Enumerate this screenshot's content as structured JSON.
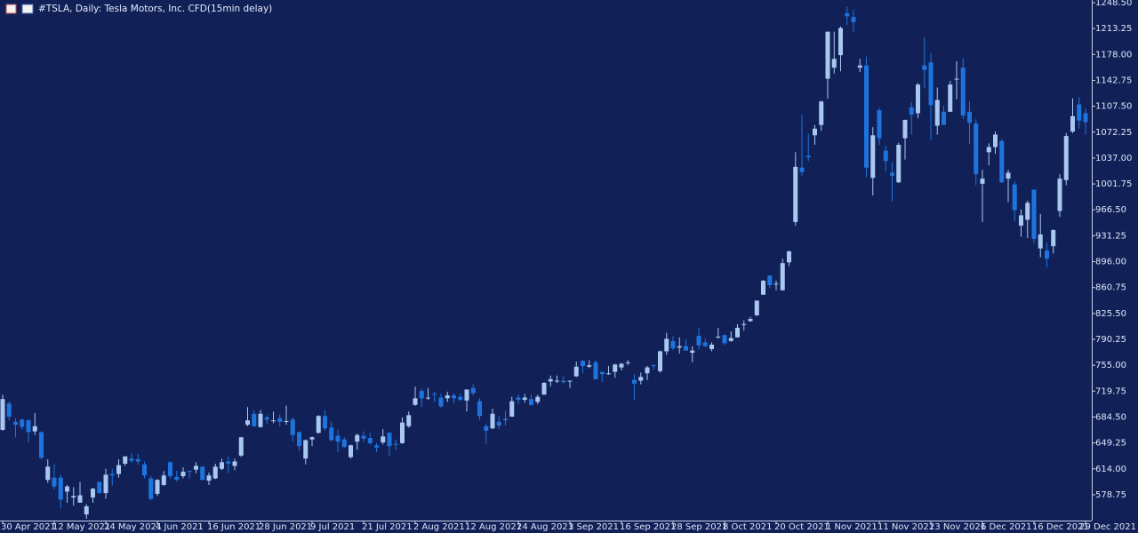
{
  "chart_data": {
    "type": "candlestick",
    "title": "#TSLA, Daily:  Tesla Motors, Inc.  CFD(15min delay)",
    "up_color": "#a9c8f0",
    "down_color": "#1e74de",
    "background": "#112158",
    "categories": [
      "30 Apr 2021",
      null,
      null,
      null,
      null,
      null,
      null,
      null,
      "12 May 2021",
      null,
      null,
      null,
      null,
      null,
      null,
      null,
      "24 May 2021",
      null,
      null,
      null,
      null,
      null,
      null,
      null,
      "4 Jun 2021",
      null,
      null,
      null,
      null,
      null,
      null,
      null,
      "16 Jun 2021",
      null,
      null,
      null,
      null,
      null,
      null,
      null,
      "28 Jun 2021",
      null,
      null,
      null,
      null,
      null,
      null,
      null,
      "9 Jul 2021",
      null,
      null,
      null,
      null,
      null,
      null,
      null,
      "21 Jul 2021",
      null,
      null,
      null,
      null,
      null,
      null,
      null,
      "2 Aug 2021",
      null,
      null,
      null,
      null,
      null,
      null,
      null,
      "12 Aug 2021",
      null,
      null,
      null,
      null,
      null,
      null,
      null,
      "24 Aug 2021",
      null,
      null,
      null,
      null,
      null,
      null,
      null,
      "3 Sep 2021",
      null,
      null,
      null,
      null,
      null,
      null,
      null,
      "16 Sep 2021",
      null,
      null,
      null,
      null,
      null,
      null,
      null,
      "28 Sep 2021",
      null,
      null,
      null,
      null,
      null,
      null,
      null,
      "8 Oct 2021",
      null,
      null,
      null,
      null,
      null,
      null,
      null,
      "20 Oct 2021",
      null,
      null,
      null,
      null,
      null,
      null,
      null,
      "1 Nov 2021",
      null,
      null,
      null,
      null,
      null,
      null,
      null,
      "11 Nov 2021",
      null,
      null,
      null,
      null,
      null,
      null,
      null,
      "23 Nov 2021",
      null,
      null,
      null,
      null,
      null,
      null,
      null,
      "6 Dec 2021",
      null,
      null,
      null,
      null,
      null,
      null,
      null,
      "16 Dec 2021",
      null,
      null,
      null,
      null,
      null,
      null,
      null,
      "29 Dec 2021"
    ],
    "open": [
      667,
      703,
      678,
      681,
      680,
      665,
      664,
      599,
      602,
      602,
      583,
      575,
      568,
      552,
      575,
      596,
      581,
      607,
      607,
      621,
      628,
      627,
      620,
      601,
      580,
      592,
      623,
      603,
      604,
      611,
      613,
      617,
      598,
      601,
      614,
      624,
      618,
      632,
      674,
      689,
      671,
      684,
      679,
      683,
      678,
      681,
      664,
      628,
      654,
      663,
      686,
      670,
      659,
      654,
      630,
      651,
      659,
      656,
      646,
      650,
      663,
      648,
      649,
      672,
      701,
      720,
      711,
      716,
      711,
      710,
      714,
      712,
      707,
      724,
      706,
      672,
      669,
      678,
      682,
      685,
      711,
      708,
      709,
      705,
      715,
      733,
      734,
      734,
      733,
      740,
      761,
      753,
      759,
      746,
      743,
      746,
      752,
      758,
      735,
      734,
      744,
      755,
      747,
      774,
      788,
      779,
      781,
      772,
      795,
      786,
      777,
      794,
      796,
      788,
      793,
      811,
      815,
      823,
      851,
      877,
      865,
      857,
      895,
      950,
      1024,
      1040,
      1068,
      1082,
      1145,
      1160,
      1177,
      1234,
      1229,
      1160,
      1163,
      1010,
      1102,
      1047,
      1017,
      1004,
      1064,
      1106,
      1098,
      1163,
      1167,
      1081,
      1100,
      1100,
      1145,
      1160,
      1100,
      1084,
      1002,
      1045,
      1052,
      1060,
      1009,
      1001,
      945,
      953,
      994,
      914,
      911,
      917,
      965,
      1007,
      1073,
      1110,
      1098
    ],
    "high": [
      715,
      706,
      683,
      682,
      681,
      690,
      665,
      627,
      620,
      606,
      592,
      589,
      596,
      566,
      588,
      597,
      614,
      614,
      627,
      631,
      635,
      634,
      624,
      604,
      600,
      611,
      624,
      611,
      616,
      612,
      623,
      617,
      609,
      621,
      628,
      631,
      628,
      657,
      698,
      694,
      694,
      687,
      692,
      688,
      700,
      684,
      665,
      654,
      658,
      687,
      694,
      678,
      667,
      657,
      647,
      662,
      665,
      663,
      649,
      668,
      664,
      654,
      684,
      692,
      726,
      723,
      724,
      719,
      716,
      719,
      717,
      716,
      722,
      729,
      710,
      675,
      696,
      686,
      693,
      712,
      715,
      716,
      715,
      715,
      732,
      741,
      741,
      740,
      734,
      760,
      762,
      762,
      762,
      746,
      754,
      757,
      758,
      762,
      743,
      745,
      754,
      757,
      775,
      799,
      795,
      793,
      790,
      781,
      806,
      791,
      786,
      806,
      797,
      801,
      811,
      816,
      821,
      843,
      871,
      877,
      870,
      900,
      911,
      1045,
      1095,
      1070,
      1082,
      1115,
      1209,
      1209,
      1216,
      1243,
      1239,
      1172,
      1175,
      1079,
      1105,
      1054,
      1031,
      1058,
      1089,
      1113,
      1139,
      1201,
      1180,
      1133,
      1108,
      1142,
      1169,
      1173,
      1114,
      1090,
      1021,
      1057,
      1073,
      1063,
      1021,
      1005,
      967,
      979,
      994,
      961,
      922,
      940,
      1015,
      1071,
      1118,
      1120,
      1105
    ],
    "low": [
      666,
      680,
      657,
      667,
      650,
      660,
      627,
      595,
      586,
      560,
      568,
      564,
      568,
      546,
      568,
      580,
      573,
      591,
      602,
      618,
      622,
      620,
      601,
      571,
      577,
      591,
      601,
      597,
      601,
      601,
      608,
      598,
      592,
      600,
      612,
      608,
      612,
      630,
      672,
      671,
      670,
      675,
      676,
      672,
      674,
      651,
      638,
      620,
      645,
      662,
      666,
      652,
      637,
      642,
      628,
      640,
      651,
      647,
      637,
      647,
      631,
      640,
      648,
      670,
      700,
      698,
      708,
      705,
      697,
      705,
      703,
      706,
      692,
      714,
      680,
      648,
      668,
      668,
      673,
      685,
      702,
      704,
      700,
      702,
      715,
      726,
      731,
      730,
      724,
      739,
      744,
      751,
      736,
      732,
      742,
      738,
      748,
      755,
      708,
      729,
      735,
      749,
      745,
      769,
      776,
      771,
      775,
      759,
      776,
      780,
      774,
      791,
      782,
      787,
      793,
      802,
      814,
      822,
      851,
      860,
      857,
      857,
      890,
      945,
      1013,
      1033,
      1055,
      1074,
      1118,
      1152,
      1155,
      1218,
      1209,
      1154,
      1011,
      986,
      1055,
      1019,
      978,
      1003,
      1035,
      1069,
      1091,
      1132,
      1062,
      1069,
      1082,
      1100,
      1117,
      1090,
      1056,
      1000,
      950,
      1027,
      1043,
      1003,
      977,
      951,
      930,
      928,
      921,
      902,
      888,
      907,
      957,
      1000,
      1071,
      1077,
      1069
    ],
    "close": [
      709,
      685,
      674,
      671,
      664,
      672,
      629,
      617,
      590,
      572,
      590,
      577,
      578,
      563,
      587,
      581,
      606,
      605,
      619,
      631,
      625,
      624,
      605,
      573,
      599,
      605,
      604,
      599,
      610,
      610,
      618,
      599,
      605,
      617,
      623,
      621,
      624,
      657,
      680,
      672,
      689,
      681,
      680,
      678,
      679,
      660,
      645,
      653,
      657,
      686,
      669,
      653,
      651,
      644,
      646,
      660,
      655,
      649,
      643,
      658,
      645,
      647,
      677,
      687,
      710,
      710,
      711,
      715,
      699,
      714,
      710,
      708,
      722,
      717,
      686,
      666,
      689,
      673,
      680,
      706,
      708,
      711,
      701,
      712,
      731,
      736,
      734,
      732,
      734,
      753,
      754,
      755,
      736,
      743,
      744,
      756,
      757,
      759,
      730,
      739,
      752,
      754,
      774,
      791,
      778,
      781,
      775,
      775,
      782,
      781,
      783,
      794,
      785,
      792,
      806,
      811,
      818,
      843,
      870,
      864,
      866,
      894,
      910,
      1025,
      1018,
      1038,
      1077,
      1114,
      1209,
      1172,
      1214,
      1230,
      1222,
      1163,
      1024,
      1068,
      1064,
      1033,
      1013,
      1055,
      1089,
      1096,
      1137,
      1157,
      1109,
      1116,
      1082,
      1137,
      1145,
      1095,
      1085,
      1015,
      1009,
      1052,
      1069,
      1004,
      1017,
      966,
      959,
      976,
      927,
      933,
      900,
      939,
      1009,
      1067,
      1094,
      1088,
      1086
    ],
    "ylim": [
      543.6,
      1252.1
    ],
    "yticks": [
      578.75,
      {
        "value": 614,
        "label": "614.00"
      },
      649.25,
      {
        "value": 684.5,
        "label": "684.50"
      },
      719.75,
      {
        "value": 755,
        "label": "755.00"
      },
      790.25,
      {
        "value": 825.5,
        "label": "825.50"
      },
      860.75,
      {
        "value": 896,
        "label": "896.00"
      },
      931.25,
      {
        "value": 966.5,
        "label": "966.50"
      },
      1001.75,
      {
        "value": 1037,
        "label": "1037.00"
      },
      1072.25,
      {
        "value": 1107.5,
        "label": "1107.50"
      },
      1142.75,
      {
        "value": 1178,
        "label": "1178.00"
      },
      1213.25,
      {
        "value": 1248.5,
        "label": "1248.50"
      }
    ]
  }
}
